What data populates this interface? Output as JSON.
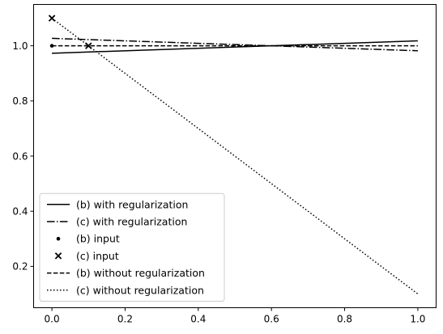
{
  "chart_data": {
    "type": "line",
    "title": "",
    "xlabel": "",
    "ylabel": "",
    "xlim": [
      -0.05,
      1.05
    ],
    "ylim": [
      0.05,
      1.15
    ],
    "grid": false,
    "legend_position": "lower-left",
    "x_ticks": [
      {
        "value": 0.0,
        "label": "0.0"
      },
      {
        "value": 0.2,
        "label": "0.2"
      },
      {
        "value": 0.4,
        "label": "0.4"
      },
      {
        "value": 0.6,
        "label": "0.6"
      },
      {
        "value": 0.8,
        "label": "0.8"
      },
      {
        "value": 1.0,
        "label": "1.0"
      }
    ],
    "y_ticks": [
      {
        "value": 0.2,
        "label": "0.2"
      },
      {
        "value": 0.4,
        "label": "0.4"
      },
      {
        "value": 0.6,
        "label": "0.6"
      },
      {
        "value": 0.8,
        "label": "0.8"
      },
      {
        "value": 1.0,
        "label": "1.0"
      }
    ],
    "series": [
      {
        "name": "(b) with regularization",
        "kind": "line",
        "style": "solid",
        "color": "#000000",
        "x": [
          0.0,
          1.0
        ],
        "y": [
          0.973,
          1.018
        ]
      },
      {
        "name": "(c) with regularization",
        "kind": "line",
        "style": "dashdot",
        "color": "#000000",
        "x": [
          0.0,
          1.0
        ],
        "y": [
          1.027,
          0.982
        ]
      },
      {
        "name": "(b) input",
        "kind": "scatter",
        "marker": "dot",
        "color": "#000000",
        "x": [
          0.0
        ],
        "y": [
          1.0
        ]
      },
      {
        "name": "(c) input",
        "kind": "scatter",
        "marker": "x",
        "color": "#000000",
        "x": [
          0.0,
          0.1
        ],
        "y": [
          1.1,
          1.0
        ]
      },
      {
        "name": "(b) without regularization",
        "kind": "line",
        "style": "dashed",
        "color": "#000000",
        "x": [
          0.0,
          1.0
        ],
        "y": [
          1.0,
          1.0
        ]
      },
      {
        "name": "(c) without regularization",
        "kind": "line",
        "style": "dotted",
        "color": "#000000",
        "x": [
          0.0,
          1.0
        ],
        "y": [
          1.1,
          0.1
        ]
      }
    ]
  }
}
